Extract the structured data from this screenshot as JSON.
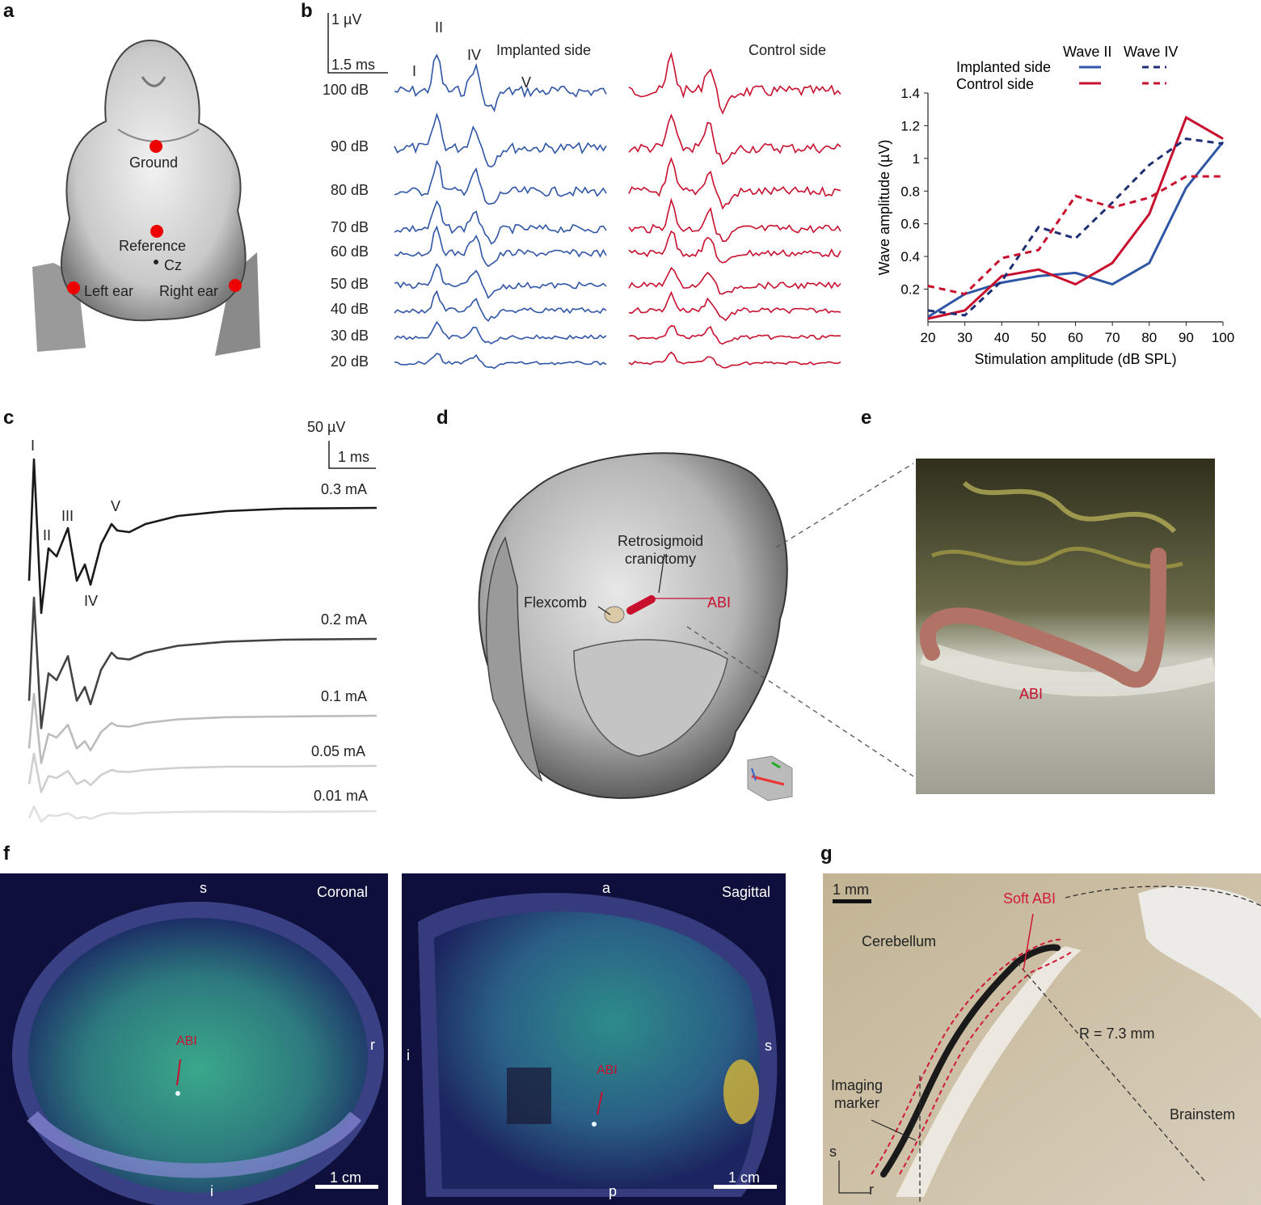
{
  "panel_labels": {
    "a": "a",
    "b": "b",
    "c": "c",
    "d": "d",
    "e": "e",
    "f": "f",
    "g": "g"
  },
  "panel_a": {
    "electrodes": {
      "ground": "Ground",
      "reference": "Reference",
      "cz": "Cz",
      "left_ear": "Left ear",
      "right_ear": "Right ear"
    }
  },
  "panel_b": {
    "scale_voltage": "1 µV",
    "scale_time": "1.5 ms",
    "wave_labels": {
      "I": "I",
      "II": "II",
      "IV": "IV",
      "V": "V"
    },
    "implanted_title": "Implanted side",
    "control_title": "Control side",
    "levels": [
      "100 dB",
      "90 dB",
      "80 dB",
      "70 dB",
      "60 dB",
      "50 dB",
      "40 dB",
      "30 dB",
      "20 dB"
    ],
    "colors": {
      "implanted": "#2f56a6",
      "control": "#c8102e",
      "implanted_dark": "#1f2f75"
    }
  },
  "chart_data": {
    "type": "line",
    "title": "",
    "xlabel": "Stimulation amplitude (dB SPL)",
    "ylabel": "Wave amplitude (µV)",
    "x": [
      20,
      30,
      40,
      50,
      60,
      70,
      80,
      90,
      100
    ],
    "xticks": [
      "20",
      "30",
      "40",
      "50",
      "60",
      "70",
      "80",
      "90",
      "100"
    ],
    "yticks": [
      "0.2",
      "0.4",
      "0.6",
      "0.8",
      "1",
      "1.2",
      "1.4"
    ],
    "xlim": [
      20,
      100
    ],
    "ylim": [
      0.0,
      1.4
    ],
    "legend": {
      "col1": "Wave II",
      "col2": "Wave IV",
      "row1": "Implanted side",
      "row2": "Control side"
    },
    "series": [
      {
        "name": "Implanted side Wave II",
        "style": "solid",
        "color": "#2f56a6",
        "values": [
          0.03,
          0.17,
          0.24,
          0.28,
          0.3,
          0.23,
          0.36,
          0.82,
          1.1
        ]
      },
      {
        "name": "Control side Wave II",
        "style": "solid",
        "color": "#c8102e",
        "values": [
          0.02,
          0.07,
          0.28,
          0.32,
          0.23,
          0.36,
          0.66,
          1.25,
          1.12
        ]
      },
      {
        "name": "Implanted side Wave IV",
        "style": "dashed",
        "color": "#1f2f75",
        "values": [
          0.07,
          0.04,
          0.25,
          0.58,
          0.51,
          0.73,
          0.96,
          1.12,
          1.09
        ]
      },
      {
        "name": "Control side Wave IV",
        "style": "dashed",
        "color": "#c8102e",
        "values": [
          0.22,
          0.17,
          0.39,
          0.44,
          0.77,
          0.7,
          0.76,
          0.89,
          0.89
        ]
      }
    ]
  },
  "panel_c": {
    "scale_voltage": "50 µV",
    "scale_time": "1 ms",
    "wave_labels": {
      "I": "I",
      "II": "II",
      "III": "III",
      "IV": "IV",
      "V": "V"
    },
    "currents": [
      "0.3 mA",
      "0.2 mA",
      "0.1 mA",
      "0.05 mA",
      "0.01 mA"
    ]
  },
  "panel_d": {
    "craniotomy": "Retrosigmoid\ncraniotomy",
    "flexcomb": "Flexcomb",
    "abi": "ABI"
  },
  "panel_e": {
    "abi": "ABI"
  },
  "panel_f": {
    "coronal": {
      "view": "Coronal",
      "s": "s",
      "i": "i",
      "r": "r",
      "abi": "ABI",
      "scale": "1 cm"
    },
    "sagittal": {
      "view": "Sagittal",
      "a": "a",
      "p": "p",
      "i": "i",
      "s": "s",
      "abi": "ABI",
      "scale": "1 cm"
    }
  },
  "panel_g": {
    "scale": "1 mm",
    "cerebellum": "Cerebellum",
    "soft_abi": "Soft ABI",
    "radius": "R = 7.3 mm",
    "imaging_marker": "Imaging\nmarker",
    "brainstem": "Brainstem",
    "s": "s",
    "r": "r"
  }
}
